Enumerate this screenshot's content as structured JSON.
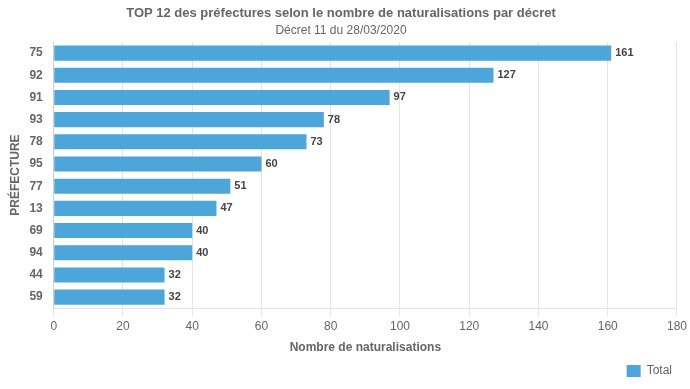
{
  "chart_data": {
    "type": "bar",
    "orientation": "horizontal",
    "title": "TOP 12 des préfectures selon le nombre de naturalisations par décret",
    "subtitle": "Décret 11 du 28/03/2020",
    "categories": [
      "75",
      "92",
      "91",
      "93",
      "78",
      "95",
      "77",
      "13",
      "69",
      "94",
      "44",
      "59"
    ],
    "series": [
      {
        "name": "Total",
        "color": "#4da6d9",
        "values": [
          161,
          127,
          97,
          78,
          73,
          60,
          51,
          47,
          40,
          40,
          32,
          32
        ]
      }
    ],
    "xlabel": "Nombre de naturalisations",
    "ylabel": "PRÉFECTURE",
    "xlim": [
      0,
      180
    ],
    "xticks": [
      0,
      20,
      40,
      60,
      80,
      100,
      120,
      140,
      160,
      180
    ],
    "grid": true,
    "legend": "lower right",
    "data_labels": true
  }
}
